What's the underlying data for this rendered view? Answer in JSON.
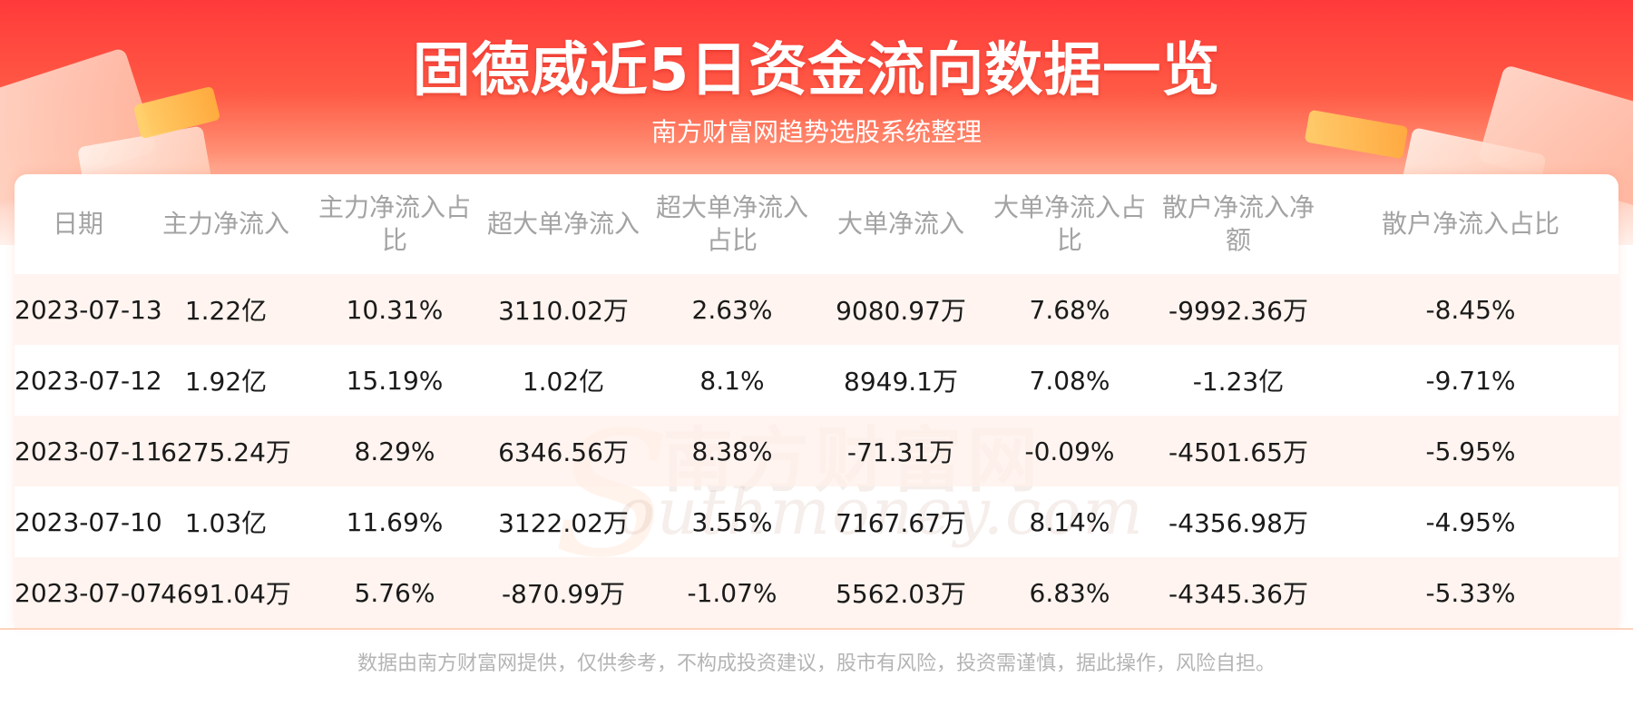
{
  "header": {
    "title": "固德威近5日资金流向数据一览",
    "subtitle": "南方财富网趋势选股系统整理"
  },
  "watermark": {
    "cn": "南方财富网",
    "en": "outhmoney.com",
    "s": "S"
  },
  "table": {
    "headers": [
      "日期",
      "主力净流入",
      "主力净流入占比",
      "超大单净流入",
      "超大单净流入占比",
      "大单净流入",
      "大单净流入占比",
      "散户净流入净额",
      "散户净流入占比"
    ],
    "rows": [
      [
        "2023-07-13",
        "1.22亿",
        "10.31%",
        "3110.02万",
        "2.63%",
        "9080.97万",
        "7.68%",
        "-9992.36万",
        "-8.45%"
      ],
      [
        "2023-07-12",
        "1.92亿",
        "15.19%",
        "1.02亿",
        "8.1%",
        "8949.1万",
        "7.08%",
        "-1.23亿",
        "-9.71%"
      ],
      [
        "2023-07-11",
        "6275.24万",
        "8.29%",
        "6346.56万",
        "8.38%",
        "-71.31万",
        "-0.09%",
        "-4501.65万",
        "-5.95%"
      ],
      [
        "2023-07-10",
        "1.03亿",
        "11.69%",
        "3122.02万",
        "3.55%",
        "7167.67万",
        "8.14%",
        "-4356.98万",
        "-4.95%"
      ],
      [
        "2023-07-07",
        "4691.04万",
        "5.76%",
        "-870.99万",
        "-1.07%",
        "5562.03万",
        "6.83%",
        "-4345.36万",
        "-5.33%"
      ]
    ]
  },
  "footer": {
    "disclaimer": "数据由南方财富网提供，仅供参考，不构成投资建议，股市有风险，投资需谨慎，据此操作，风险自担。"
  },
  "colors": {
    "banner_red": "#ff3a3a",
    "row_highlight": "#fff0ea",
    "header_text": "#a3a3a3",
    "body_text": "#1a1a1a"
  }
}
